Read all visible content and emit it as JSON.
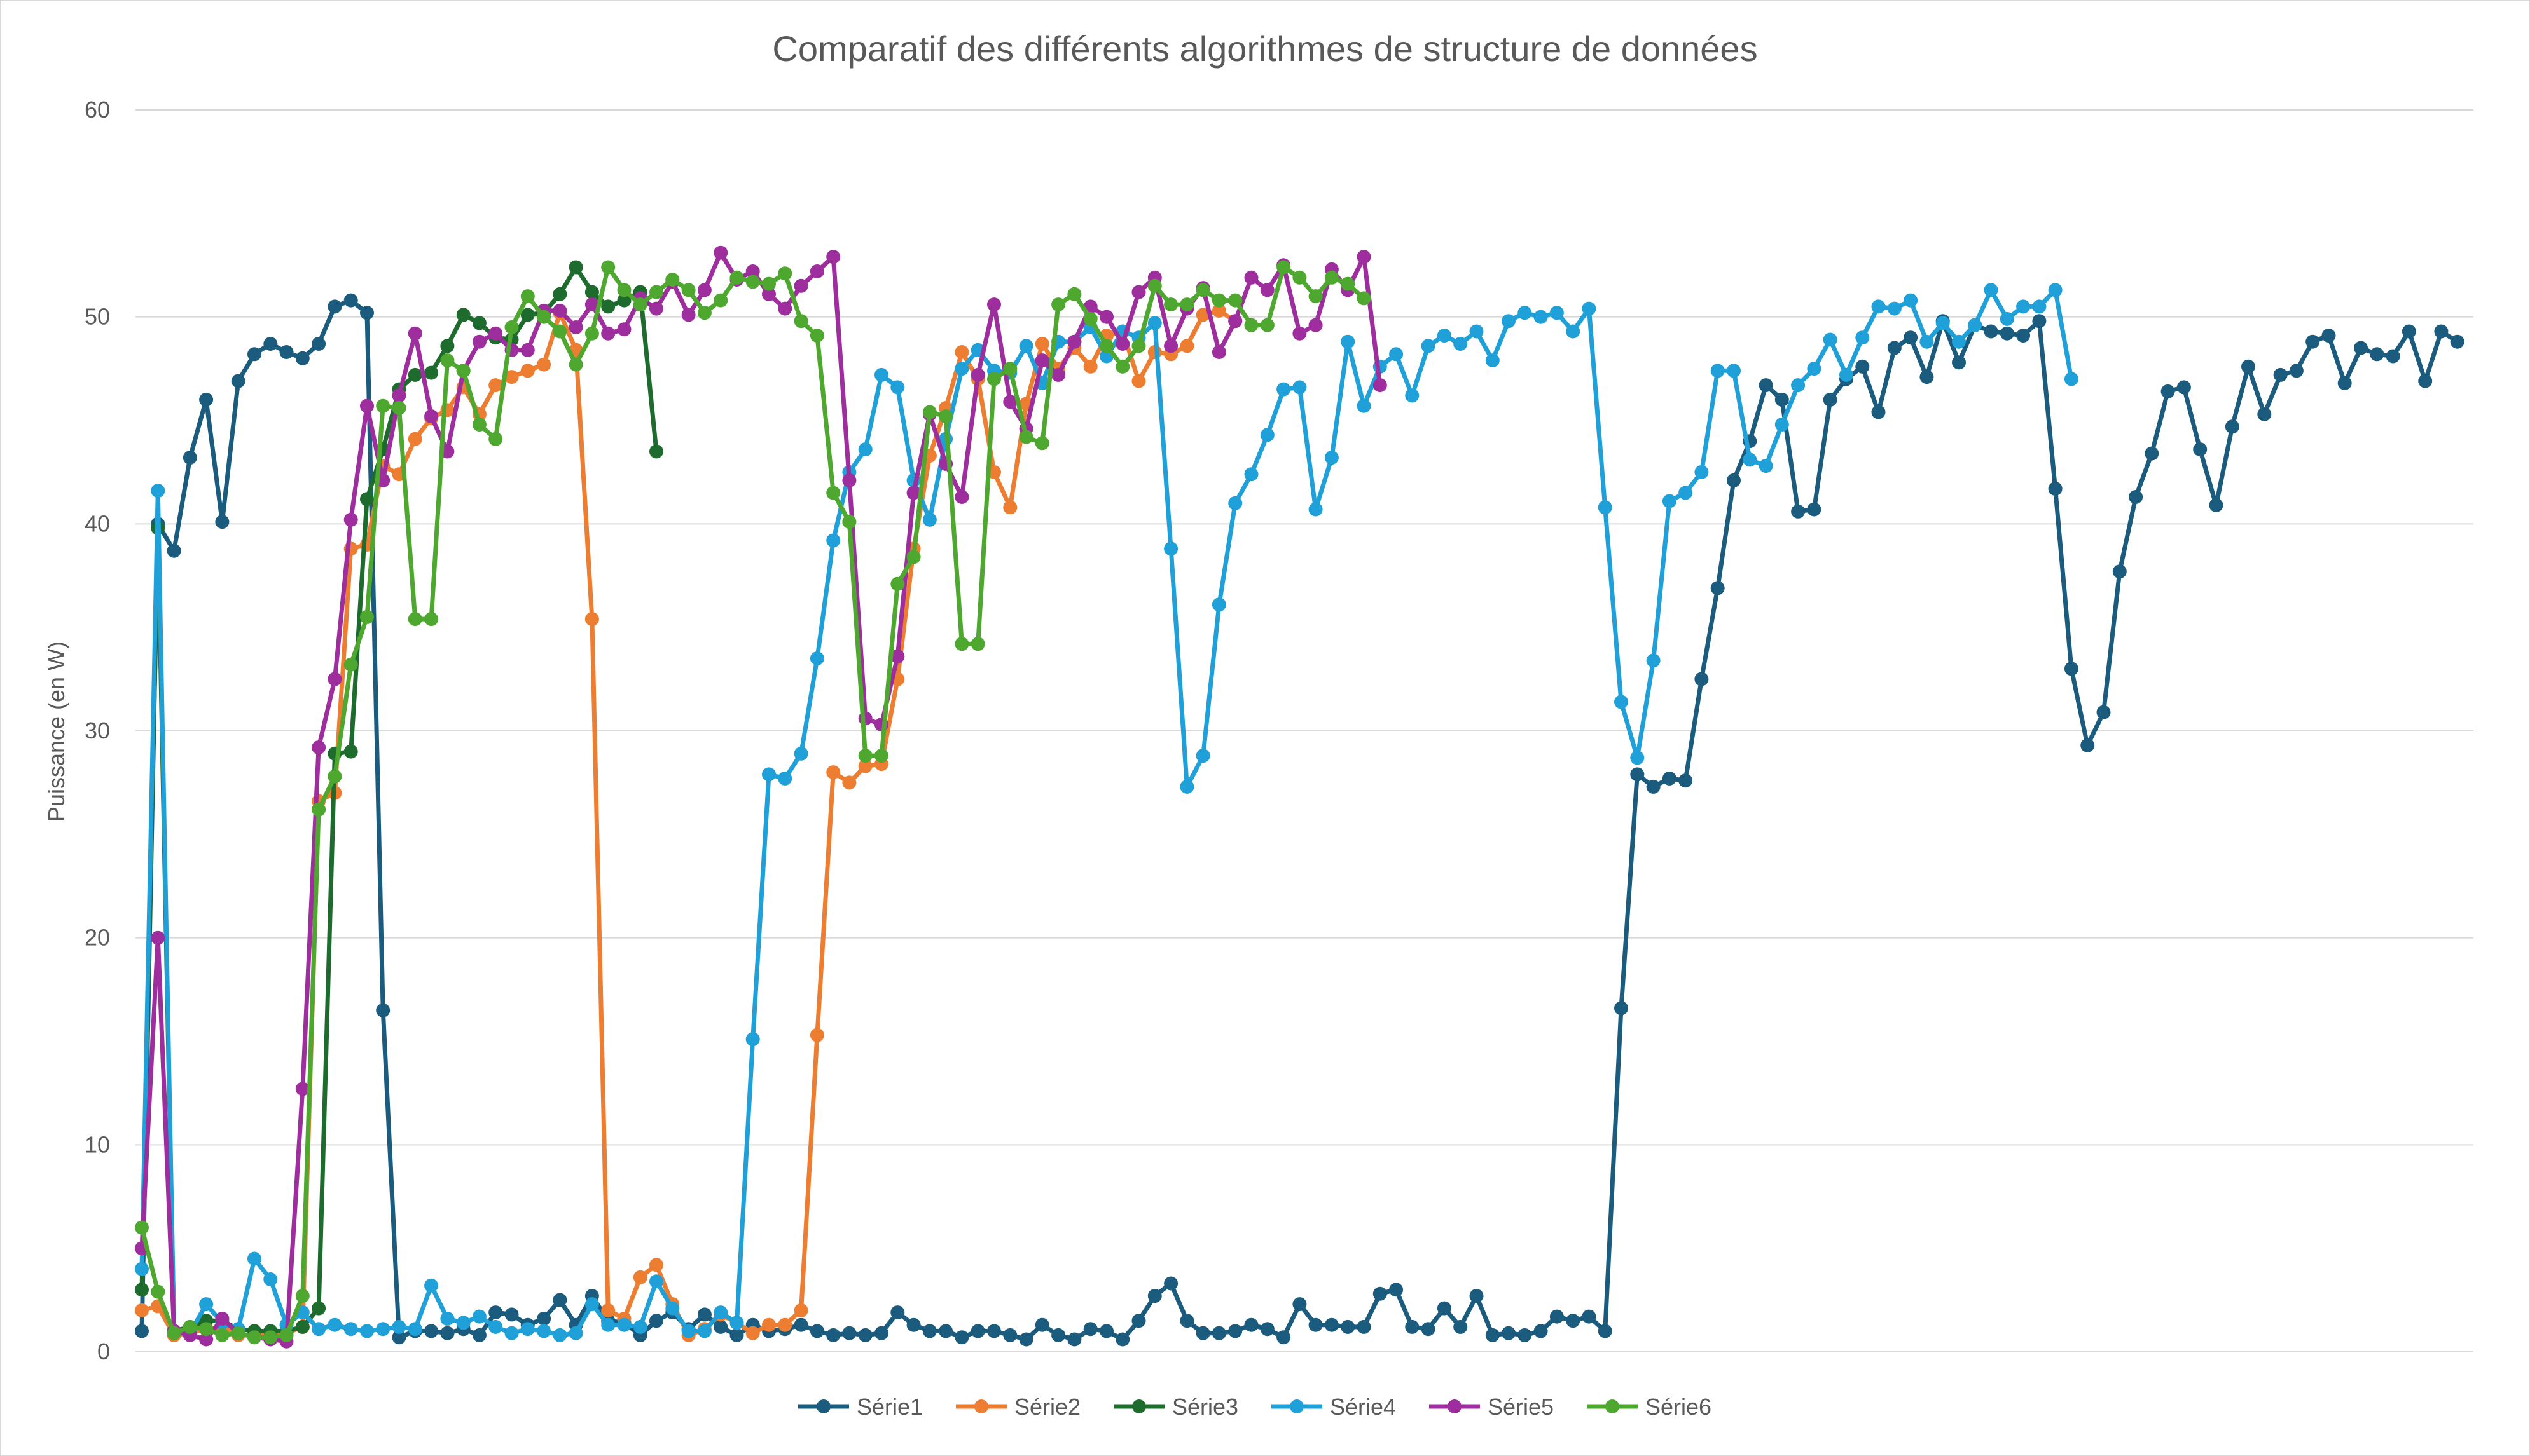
{
  "chart_data": {
    "type": "line",
    "title": "Comparatif des différents algorithmes de structure de données",
    "xlabel": "",
    "ylabel": "Puissance (en W)",
    "ylim": [
      0,
      60
    ],
    "yticks": [
      0,
      10,
      20,
      30,
      40,
      50,
      60
    ],
    "grid": true,
    "legend_position": "bottom",
    "x_points": 146,
    "series": [
      {
        "name": "Série1",
        "color": "#1a5b7e",
        "values": [
          1,
          40,
          38.7,
          43.2,
          46,
          40.1,
          46.9,
          48.2,
          48.7,
          48.3,
          48,
          48.7,
          50.5,
          50.8,
          50.2,
          16.5,
          0.7,
          1,
          1,
          0.9,
          1.1,
          0.8,
          1.9,
          1.8,
          1.3,
          1.6,
          2.5,
          1.3,
          2.7,
          1.5,
          1.4,
          0.8,
          1.5,
          1.9,
          1.1,
          1.8,
          1.2,
          0.8,
          1.3,
          1,
          1.1,
          1.3,
          1,
          0.8,
          0.9,
          0.8,
          0.9,
          1.9,
          1.3,
          1,
          1,
          0.7,
          1,
          1,
          0.8,
          0.6,
          1.3,
          0.8,
          0.6,
          1.1,
          1,
          0.6,
          1.5,
          2.7,
          3.3,
          1.5,
          0.9,
          0.9,
          1,
          1.3,
          1.1,
          0.7,
          2.3,
          1.3,
          1.3,
          1.2,
          1.2,
          2.8,
          3,
          1.2,
          1.1,
          2.1,
          1.2,
          2.7,
          0.8,
          0.9,
          0.8,
          1,
          1.7,
          1.5,
          1.7,
          1,
          16.6,
          27.9,
          27.3,
          27.7,
          27.6,
          32.5,
          36.9,
          42.1,
          44,
          46.7,
          46,
          40.6,
          40.7,
          46,
          47,
          47.6,
          45.4,
          48.5,
          49,
          47.1,
          49.8,
          47.8,
          49.6,
          49.3,
          49.2,
          49.1,
          49.8,
          41.7,
          33,
          29.3,
          30.9,
          37.7,
          41.3,
          43.4,
          46.4,
          46.6,
          43.6,
          40.9,
          44.7,
          47.6,
          45.3,
          47.2,
          47.4,
          48.8,
          49.1,
          46.8,
          48.5,
          48.2,
          48.1,
          49.3,
          46.9,
          49.3,
          48.8
        ]
      },
      {
        "name": "Série2",
        "color": "#ed7d31",
        "values": [
          2,
          2.2,
          0.8,
          0.9,
          1.1,
          1.2,
          0.8,
          0.8,
          0.9,
          0.9,
          1.2,
          26.6,
          27,
          38.8,
          39,
          42.8,
          42.4,
          44.1,
          45.1,
          45.5,
          46.6,
          45.3,
          46.7,
          47.1,
          47.4,
          47.7,
          50.2,
          48.4,
          35.4,
          2,
          1.6,
          3.6,
          4.2,
          2.3,
          0.8,
          1.1,
          1.8,
          1.4,
          0.9,
          1.3,
          1.3,
          2,
          15.3,
          28,
          27.5,
          28.3,
          28.4,
          32.5,
          38.8,
          43.3,
          45.6,
          48.3,
          47,
          42.5,
          40.8,
          45.8,
          48.7,
          47.5,
          48.5,
          47.6,
          49.1,
          49.3,
          46.9,
          48.3,
          48.2,
          48.6,
          50.1,
          50.3,
          49.8
        ]
      },
      {
        "name": "Série3",
        "color": "#1e6b2e",
        "values": [
          3,
          39.8,
          1,
          1.2,
          1.5,
          1.5,
          1.1,
          1,
          1,
          1,
          1.2,
          2.1,
          28.9,
          29,
          41.2,
          43.6,
          46.5,
          47.2,
          47.3,
          48.6,
          50.1,
          49.7,
          49,
          48.9,
          50.1,
          50.2,
          51.1,
          52.4,
          51.2,
          50.5,
          50.8,
          51.2,
          43.5
        ]
      },
      {
        "name": "Série4",
        "color": "#1fa0d8",
        "values": [
          4,
          41.6,
          1,
          0.9,
          2.3,
          1.4,
          1.1,
          4.5,
          3.5,
          1.3,
          1.9,
          1.1,
          1.3,
          1.1,
          1,
          1.1,
          1.2,
          1.1,
          3.2,
          1.6,
          1.4,
          1.7,
          1.2,
          0.9,
          1.1,
          1,
          0.8,
          0.9,
          2.3,
          1.3,
          1.3,
          1.2,
          3.4,
          2.1,
          1,
          1,
          1.9,
          1.4,
          15.1,
          27.9,
          27.7,
          28.9,
          33.5,
          39.2,
          42.5,
          43.6,
          47.2,
          46.6,
          42.1,
          40.2,
          44.1,
          47.5,
          48.4,
          47.4,
          47.3,
          48.6,
          46.8,
          48.8,
          48.8,
          49.5,
          48.1,
          49.3,
          49,
          49.7,
          38.8,
          27.3,
          28.8,
          36.1,
          41,
          42.4,
          44.3,
          46.5,
          46.6,
          40.7,
          43.2,
          48.8,
          45.7,
          47.6,
          48.2,
          46.2,
          48.6,
          49.1,
          48.7,
          49.3,
          47.9,
          49.8,
          50.2,
          50,
          50.2,
          49.3,
          50.4,
          40.8,
          31.4,
          28.7,
          33.4,
          41.1,
          41.5,
          42.5,
          47.4,
          47.4,
          43.1,
          42.8,
          44.8,
          46.7,
          47.5,
          48.9,
          47.2,
          49,
          50.5,
          50.4,
          50.8,
          48.8,
          49.7,
          48.8,
          49.6,
          51.3,
          49.9,
          50.5,
          50.5,
          51.3,
          47
        ]
      },
      {
        "name": "Série5",
        "color": "#9e2d9e",
        "values": [
          5,
          20,
          1,
          0.8,
          0.6,
          1.6,
          0.9,
          0.7,
          0.6,
          0.5,
          12.7,
          29.2,
          32.5,
          40.2,
          45.7,
          42.1,
          46.2,
          49.2,
          45.2,
          43.5,
          47.4,
          48.8,
          49.2,
          48.4,
          48.4,
          50.3,
          50.3,
          49.5,
          50.6,
          49.2,
          49.4,
          50.9,
          50.4,
          51.7,
          50.1,
          51.3,
          53.1,
          51.8,
          52.2,
          51.1,
          50.4,
          51.5,
          52.2,
          52.9,
          42.1,
          30.6,
          30.3,
          33.6,
          41.5,
          45.3,
          42.9,
          41.3,
          47.2,
          50.6,
          45.9,
          44.6,
          47.9,
          47.2,
          48.8,
          50.5,
          50,
          48.7,
          51.2,
          51.9,
          48.6,
          50.4,
          51.4,
          48.3,
          49.8,
          51.9,
          51.3,
          52.5,
          49.2,
          49.6,
          52.3,
          51.3,
          52.9,
          46.7
        ]
      },
      {
        "name": "Série6",
        "color": "#4ea72e",
        "values": [
          6,
          2.9,
          0.9,
          1.2,
          1.1,
          0.8,
          0.9,
          0.7,
          0.7,
          0.8,
          2.7,
          26.2,
          27.8,
          33.2,
          35.5,
          45.7,
          45.6,
          35.4,
          35.4,
          47.9,
          47.4,
          44.8,
          44.1,
          49.5,
          51,
          50,
          49.3,
          47.7,
          49.2,
          52.4,
          51.3,
          50.6,
          51.2,
          51.8,
          51.3,
          50.2,
          50.8,
          51.9,
          51.7,
          51.6,
          52.1,
          49.8,
          49.1,
          41.5,
          40.1,
          28.8,
          28.8,
          37.1,
          38.4,
          45.4,
          45.2,
          34.2,
          34.2,
          47,
          47.5,
          44.2,
          43.9,
          50.6,
          51.1,
          49.9,
          48.6,
          47.6,
          48.6,
          51.5,
          50.6,
          50.6,
          51.3,
          50.8,
          50.8,
          49.6,
          49.6,
          52.4,
          51.9,
          51,
          51.9,
          51.6,
          50.9
        ]
      }
    ]
  }
}
